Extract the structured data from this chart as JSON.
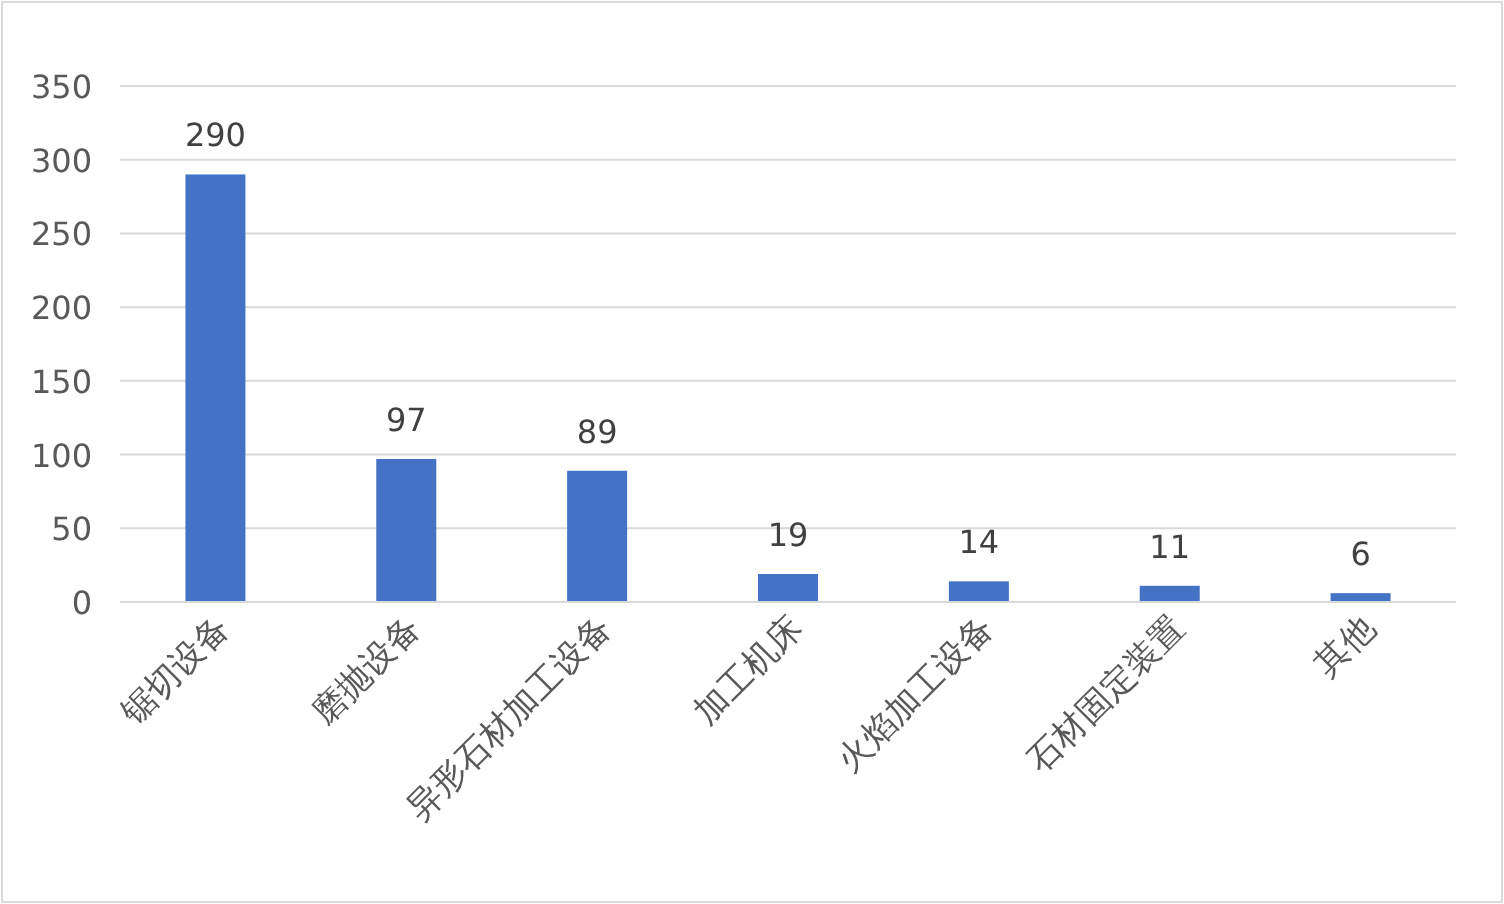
{
  "chart_data": {
    "type": "bar",
    "categories": [
      "锯切设备",
      "磨抛设备",
      "异形石材加工设备",
      "加工机床",
      "火焰加工设备",
      "石材固定装置",
      "其他"
    ],
    "values": [
      290,
      97,
      89,
      19,
      14,
      11,
      6
    ],
    "color": "#4472c4",
    "ylim": [
      0,
      350
    ],
    "yticks": [
      0,
      50,
      100,
      150,
      200,
      250,
      300,
      350
    ],
    "grid": "y",
    "data_labels": true
  }
}
